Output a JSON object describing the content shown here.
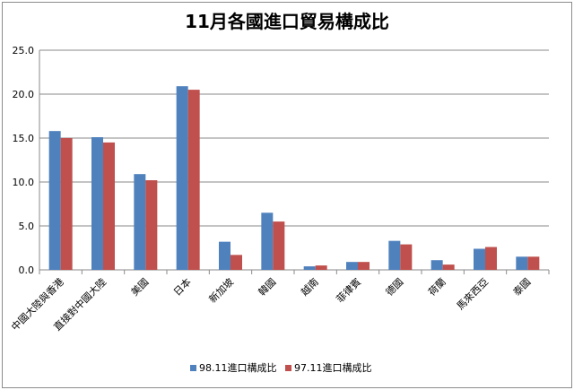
{
  "chart_data": {
    "type": "bar",
    "title": "11月各國進口貿易構成比",
    "xlabel": "",
    "ylabel": "",
    "ylim": [
      0,
      25
    ],
    "yticks": [
      "0.0",
      "5.0",
      "10.0",
      "15.0",
      "20.0",
      "25.0"
    ],
    "grid": true,
    "legend_position": "bottom",
    "categories": [
      "中國大陸與香港",
      "直接對中國大陸",
      "美國",
      "日本",
      "新加坡",
      "韓國",
      "越南",
      "菲律賓",
      "德國",
      "荷蘭",
      "馬來西亞",
      "泰國"
    ],
    "series": [
      {
        "name": "98.11進口構成比",
        "color": "#4f81bd",
        "values": [
          15.8,
          15.1,
          10.9,
          20.9,
          3.2,
          6.5,
          0.4,
          0.9,
          3.3,
          1.1,
          2.4,
          1.5
        ]
      },
      {
        "name": "97.11進口構成比",
        "color": "#c0504d",
        "values": [
          15.0,
          14.5,
          10.2,
          20.5,
          1.7,
          5.5,
          0.5,
          0.9,
          2.9,
          0.6,
          2.6,
          1.5
        ]
      }
    ]
  }
}
